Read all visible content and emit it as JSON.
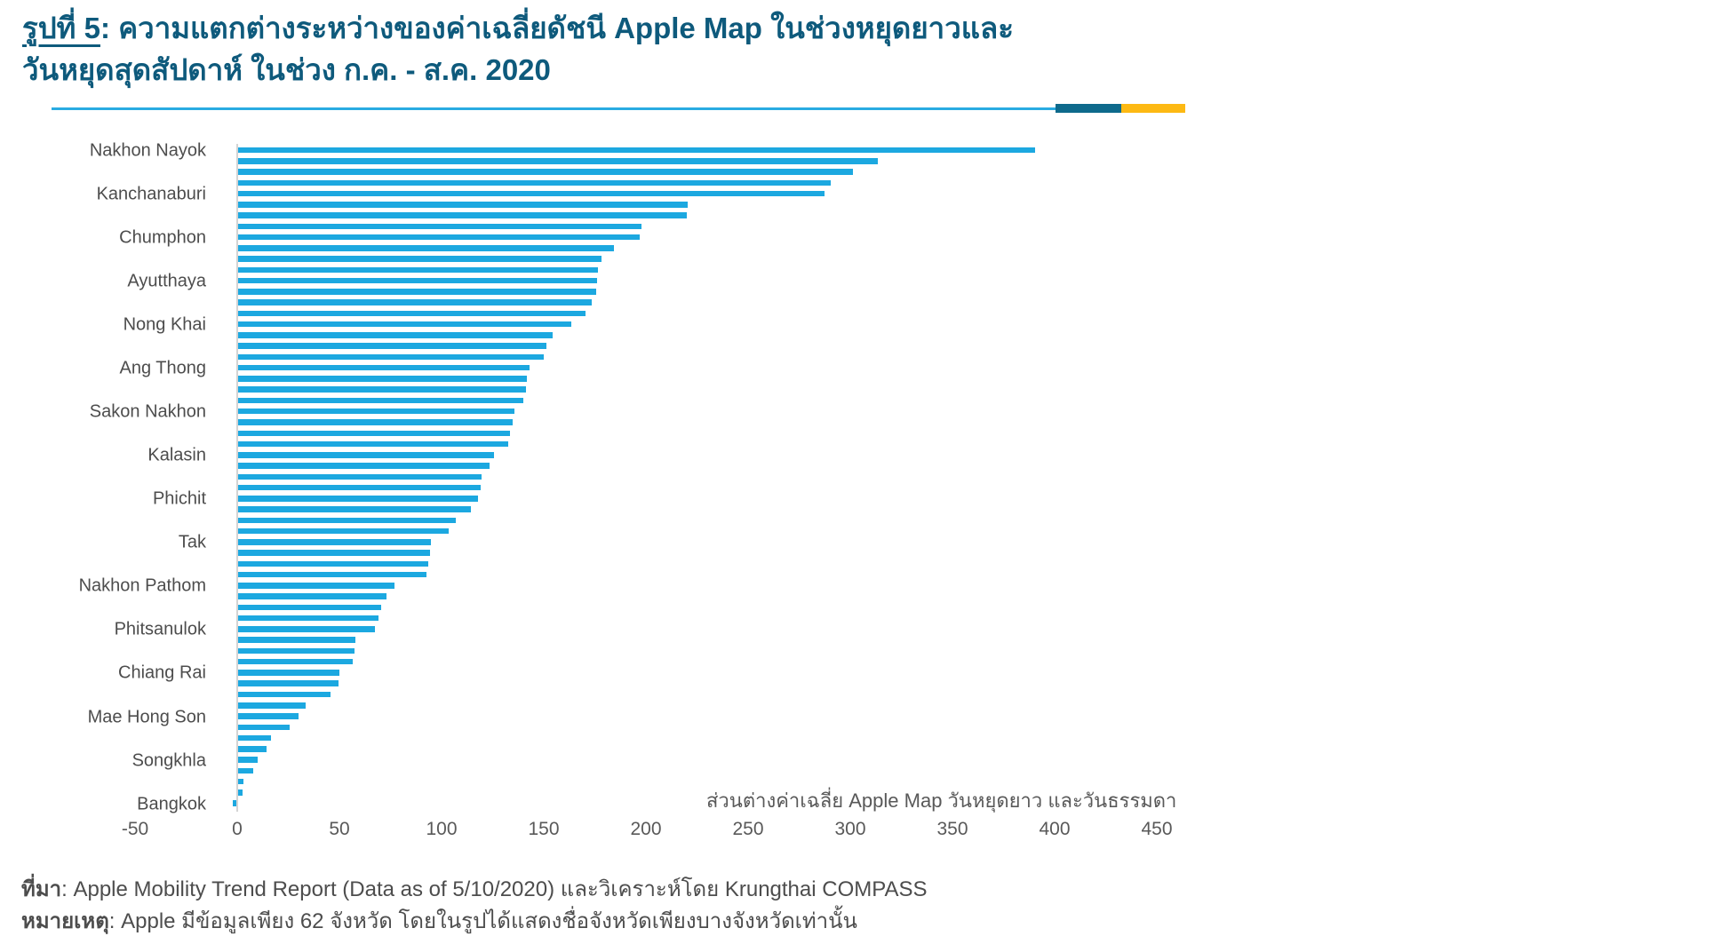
{
  "title": {
    "prefix": "รูปที่ 5",
    "line1_rest": ": ความแตกต่างระหว่างของค่าเฉลี่ยดัชนี Apple Map ในช่วงหยุดยาวและ",
    "line2": "วันหยุดสุดสัปดาห์ ในช่วง ก.ค. - ส.ค. 2020"
  },
  "colors": {
    "title_text": "#0E5A7C",
    "bar": "#1CA8E0",
    "rule_light_blue": "#29ABE2",
    "rule_dark_blue": "#0E6A8C",
    "rule_yellow": "#FDB913",
    "label_gray": "#4D4D4D",
    "tick_gray": "#595959",
    "axis_line_gray": "#D4D4D4"
  },
  "chart_data": {
    "type": "bar",
    "orientation": "horizontal",
    "title": "รูปที่ 5: ความแตกต่างระหว่างของค่าเฉลี่ยดัชนี Apple Map ในช่วงหยุดยาวและวันหยุดสุดสัปดาห์ ในช่วง ก.ค. - ส.ค. 2020",
    "annotation": "ส่วนต่างค่าเฉลี่ย Apple Map วันหยุดยาว และวันธรรมดา",
    "x_ticks": [
      -50,
      0,
      50,
      100,
      150,
      200,
      250,
      300,
      350,
      400,
      450
    ],
    "xlim": [
      -50,
      470
    ],
    "grid": false,
    "legend": "none",
    "labeled_categories": [
      "Nakhon Nayok",
      "Kanchanaburi",
      "Chumphon",
      "Ayutthaya",
      "Nong Khai",
      "Ang Thong",
      "Sakon Nakhon",
      "Kalasin",
      "Phichit",
      "Tak",
      "Nakhon Pathom",
      "Phitsanulok",
      "Chiang Rai",
      "Mae Hong Son",
      "Songkhla",
      "Bangkok"
    ],
    "label_every": 4,
    "values": [
      390,
      313,
      301,
      290,
      287,
      220,
      219.5,
      197.5,
      196.5,
      184,
      178,
      176,
      175.5,
      175,
      173,
      170,
      163,
      154,
      151,
      149.5,
      142.5,
      141.5,
      141,
      139.5,
      135,
      134.5,
      133,
      132,
      125,
      123,
      119,
      118.5,
      117.5,
      114,
      106.5,
      103,
      94.5,
      94,
      93,
      92,
      76.5,
      72.5,
      70,
      68.5,
      67,
      57.5,
      57,
      56,
      49.5,
      49,
      45,
      33,
      29.5,
      25,
      16,
      14,
      9.5,
      7.5,
      2.5,
      2,
      -1.7
    ],
    "bar_color": "#1CA8E0"
  },
  "footer": {
    "source_label": "ที่มา",
    "source_text": ": Apple Mobility Trend Report (Data as of 5/10/2020) และวิเคราะห์โดย Krungthai COMPASS",
    "note_label": "หมายเหตุ",
    "note_text": ": Apple มีข้อมูลเพียง 62 จังหวัด โดยในรูปได้แสดงชื่อจังหวัดเพียงบางจังหวัดเท่านั้น"
  }
}
